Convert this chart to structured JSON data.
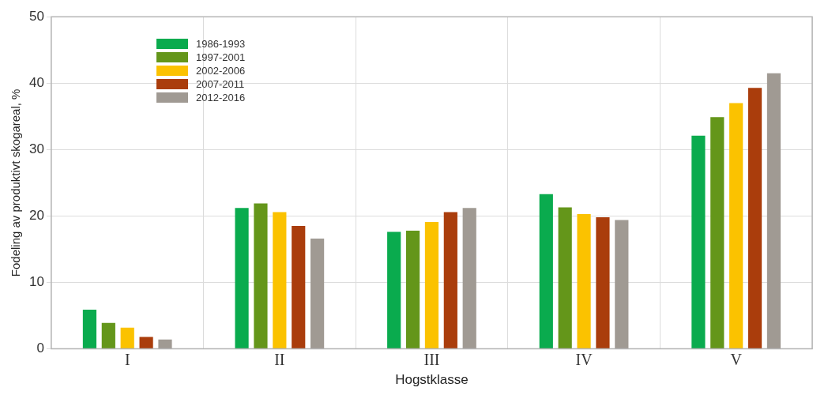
{
  "chart_data": {
    "type": "bar",
    "xlabel": "Hogstklasse",
    "ylabel": "Fodeling av produktivt skogareal, %",
    "categories": [
      "I",
      "II",
      "III",
      "IV",
      "V"
    ],
    "series": [
      {
        "name": "1986-1993",
        "color": "#0aab4e",
        "values": [
          5.9,
          21.2,
          17.6,
          23.3,
          32.1
        ]
      },
      {
        "name": "1997-2001",
        "color": "#64961a",
        "values": [
          3.9,
          21.9,
          17.8,
          21.3,
          34.9
        ]
      },
      {
        "name": "2002-2006",
        "color": "#fbc200",
        "values": [
          3.2,
          20.6,
          19.1,
          20.3,
          37.0
        ]
      },
      {
        "name": "2007-2011",
        "color": "#aa3d0c",
        "values": [
          1.8,
          18.5,
          20.6,
          19.8,
          39.3
        ]
      },
      {
        "name": "2012-2016",
        "color": "#a09a93",
        "values": [
          1.4,
          16.6,
          21.2,
          19.4,
          41.5
        ]
      }
    ],
    "ylim": [
      0,
      50
    ],
    "yticks": [
      0,
      10,
      20,
      30,
      40,
      50
    ],
    "grid": true,
    "legend": "top left"
  }
}
